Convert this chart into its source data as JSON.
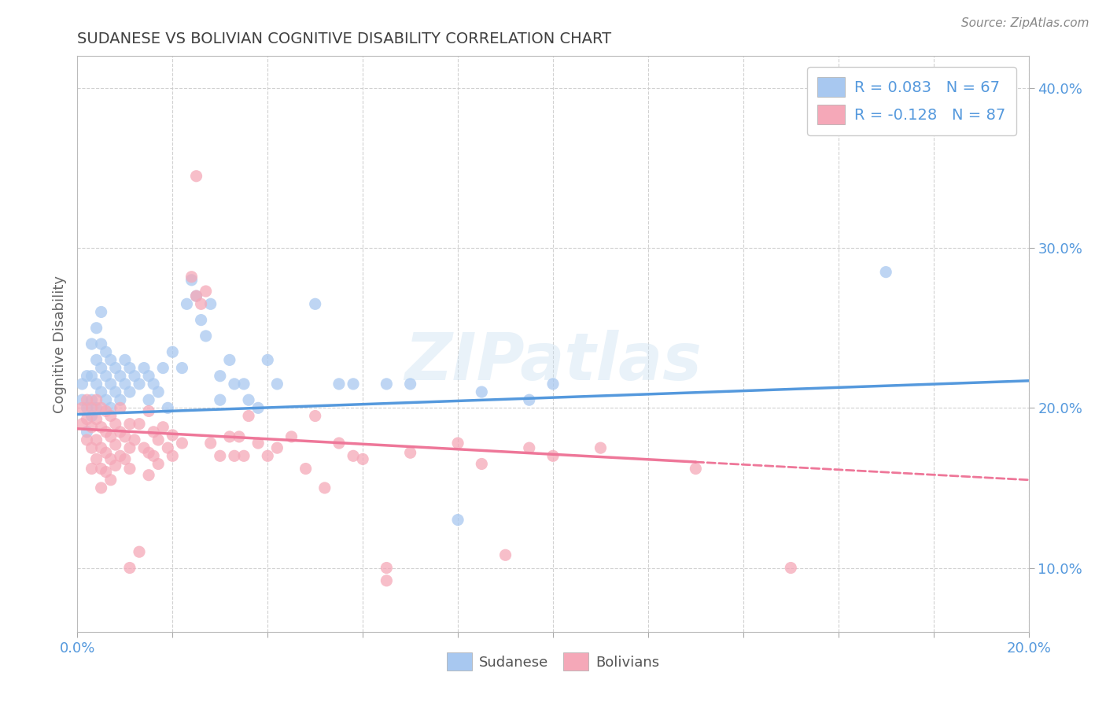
{
  "title": "SUDANESE VS BOLIVIAN COGNITIVE DISABILITY CORRELATION CHART",
  "source": "Source: ZipAtlas.com",
  "ylabel_label": "Cognitive Disability",
  "xlim": [
    0.0,
    0.2
  ],
  "ylim": [
    0.06,
    0.42
  ],
  "xtick_positions": [
    0.0,
    0.02,
    0.04,
    0.06,
    0.08,
    0.1,
    0.12,
    0.14,
    0.16,
    0.18,
    0.2
  ],
  "xtick_labels": [
    "0.0%",
    "",
    "",
    "",
    "",
    "",
    "",
    "",
    "",
    "",
    "20.0%"
  ],
  "ytick_positions": [
    0.1,
    0.2,
    0.3,
    0.4
  ],
  "ytick_labels": [
    "10.0%",
    "20.0%",
    "30.0%",
    "40.0%"
  ],
  "background_color": "#ffffff",
  "plot_bg_color": "#ffffff",
  "grid_color": "#cccccc",
  "sudanese_color": "#a8c8f0",
  "bolivian_color": "#f5a8b8",
  "sudanese_line_color": "#5599dd",
  "bolivian_line_color": "#ee7799",
  "legend_R_sudanese": "R = 0.083",
  "legend_N_sudanese": "N = 67",
  "legend_R_bolivian": "R = -0.128",
  "legend_N_bolivian": "N = 87",
  "sudanese_scatter": [
    [
      0.001,
      0.215
    ],
    [
      0.001,
      0.205
    ],
    [
      0.002,
      0.22
    ],
    [
      0.002,
      0.2
    ],
    [
      0.002,
      0.185
    ],
    [
      0.003,
      0.24
    ],
    [
      0.003,
      0.22
    ],
    [
      0.003,
      0.205
    ],
    [
      0.003,
      0.195
    ],
    [
      0.004,
      0.25
    ],
    [
      0.004,
      0.23
    ],
    [
      0.004,
      0.215
    ],
    [
      0.004,
      0.2
    ],
    [
      0.005,
      0.26
    ],
    [
      0.005,
      0.24
    ],
    [
      0.005,
      0.225
    ],
    [
      0.005,
      0.21
    ],
    [
      0.006,
      0.235
    ],
    [
      0.006,
      0.22
    ],
    [
      0.006,
      0.205
    ],
    [
      0.007,
      0.23
    ],
    [
      0.007,
      0.215
    ],
    [
      0.007,
      0.2
    ],
    [
      0.008,
      0.225
    ],
    [
      0.008,
      0.21
    ],
    [
      0.009,
      0.22
    ],
    [
      0.009,
      0.205
    ],
    [
      0.01,
      0.23
    ],
    [
      0.01,
      0.215
    ],
    [
      0.011,
      0.225
    ],
    [
      0.011,
      0.21
    ],
    [
      0.012,
      0.22
    ],
    [
      0.013,
      0.215
    ],
    [
      0.014,
      0.225
    ],
    [
      0.015,
      0.22
    ],
    [
      0.015,
      0.205
    ],
    [
      0.016,
      0.215
    ],
    [
      0.017,
      0.21
    ],
    [
      0.018,
      0.225
    ],
    [
      0.019,
      0.2
    ],
    [
      0.02,
      0.235
    ],
    [
      0.022,
      0.225
    ],
    [
      0.023,
      0.265
    ],
    [
      0.024,
      0.28
    ],
    [
      0.025,
      0.27
    ],
    [
      0.026,
      0.255
    ],
    [
      0.027,
      0.245
    ],
    [
      0.028,
      0.265
    ],
    [
      0.03,
      0.22
    ],
    [
      0.03,
      0.205
    ],
    [
      0.032,
      0.23
    ],
    [
      0.033,
      0.215
    ],
    [
      0.035,
      0.215
    ],
    [
      0.036,
      0.205
    ],
    [
      0.038,
      0.2
    ],
    [
      0.04,
      0.23
    ],
    [
      0.042,
      0.215
    ],
    [
      0.05,
      0.265
    ],
    [
      0.055,
      0.215
    ],
    [
      0.058,
      0.215
    ],
    [
      0.065,
      0.215
    ],
    [
      0.07,
      0.215
    ],
    [
      0.08,
      0.13
    ],
    [
      0.085,
      0.21
    ],
    [
      0.095,
      0.205
    ],
    [
      0.1,
      0.215
    ],
    [
      0.17,
      0.285
    ]
  ],
  "bolivian_scatter": [
    [
      0.001,
      0.2
    ],
    [
      0.001,
      0.19
    ],
    [
      0.002,
      0.205
    ],
    [
      0.002,
      0.193
    ],
    [
      0.002,
      0.18
    ],
    [
      0.003,
      0.2
    ],
    [
      0.003,
      0.188
    ],
    [
      0.003,
      0.175
    ],
    [
      0.003,
      0.162
    ],
    [
      0.004,
      0.205
    ],
    [
      0.004,
      0.193
    ],
    [
      0.004,
      0.18
    ],
    [
      0.004,
      0.168
    ],
    [
      0.005,
      0.2
    ],
    [
      0.005,
      0.188
    ],
    [
      0.005,
      0.175
    ],
    [
      0.005,
      0.162
    ],
    [
      0.005,
      0.15
    ],
    [
      0.006,
      0.198
    ],
    [
      0.006,
      0.185
    ],
    [
      0.006,
      0.172
    ],
    [
      0.006,
      0.16
    ],
    [
      0.007,
      0.195
    ],
    [
      0.007,
      0.182
    ],
    [
      0.007,
      0.168
    ],
    [
      0.007,
      0.155
    ],
    [
      0.008,
      0.19
    ],
    [
      0.008,
      0.177
    ],
    [
      0.008,
      0.164
    ],
    [
      0.009,
      0.2
    ],
    [
      0.009,
      0.185
    ],
    [
      0.009,
      0.17
    ],
    [
      0.01,
      0.182
    ],
    [
      0.01,
      0.168
    ],
    [
      0.011,
      0.19
    ],
    [
      0.011,
      0.175
    ],
    [
      0.011,
      0.162
    ],
    [
      0.011,
      0.1
    ],
    [
      0.012,
      0.18
    ],
    [
      0.013,
      0.19
    ],
    [
      0.013,
      0.11
    ],
    [
      0.014,
      0.175
    ],
    [
      0.015,
      0.198
    ],
    [
      0.015,
      0.172
    ],
    [
      0.015,
      0.158
    ],
    [
      0.016,
      0.185
    ],
    [
      0.016,
      0.17
    ],
    [
      0.017,
      0.18
    ],
    [
      0.017,
      0.165
    ],
    [
      0.018,
      0.188
    ],
    [
      0.019,
      0.175
    ],
    [
      0.02,
      0.183
    ],
    [
      0.02,
      0.17
    ],
    [
      0.022,
      0.178
    ],
    [
      0.025,
      0.345
    ],
    [
      0.024,
      0.282
    ],
    [
      0.025,
      0.27
    ],
    [
      0.026,
      0.265
    ],
    [
      0.027,
      0.273
    ],
    [
      0.028,
      0.178
    ],
    [
      0.03,
      0.17
    ],
    [
      0.032,
      0.182
    ],
    [
      0.033,
      0.17
    ],
    [
      0.034,
      0.182
    ],
    [
      0.035,
      0.17
    ],
    [
      0.036,
      0.195
    ],
    [
      0.038,
      0.178
    ],
    [
      0.04,
      0.17
    ],
    [
      0.042,
      0.175
    ],
    [
      0.045,
      0.182
    ],
    [
      0.048,
      0.162
    ],
    [
      0.05,
      0.195
    ],
    [
      0.052,
      0.15
    ],
    [
      0.055,
      0.178
    ],
    [
      0.058,
      0.17
    ],
    [
      0.06,
      0.168
    ],
    [
      0.065,
      0.1
    ],
    [
      0.065,
      0.092
    ],
    [
      0.07,
      0.172
    ],
    [
      0.08,
      0.178
    ],
    [
      0.085,
      0.165
    ],
    [
      0.09,
      0.108
    ],
    [
      0.095,
      0.175
    ],
    [
      0.1,
      0.17
    ],
    [
      0.11,
      0.175
    ],
    [
      0.13,
      0.162
    ],
    [
      0.15,
      0.1
    ]
  ],
  "watermark": "ZIPatlas",
  "title_color": "#404040",
  "tick_label_color": "#5599dd",
  "legend_text_color": "#5599dd"
}
